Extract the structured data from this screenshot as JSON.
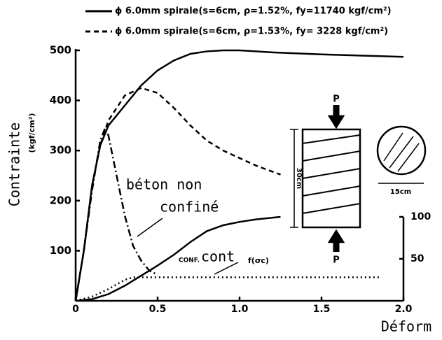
{
  "chart_data": {
    "type": "line",
    "legend": [
      "ϕ 6.0mm spirale(s=6cm, ρ=1.52%, fy=11740 kgf/cm²)",
      "ϕ 6.0mm spirale(s=6cm, ρ=1.53%, fy= 3228 kgf/cm²)"
    ],
    "ylabel": [
      "Contrainte",
      "(kgf/cm²)"
    ],
    "xlabel": "Déform",
    "xlim": [
      0,
      2
    ],
    "xticks": [
      0,
      0.5,
      {
        "value": 1,
        "label": "1.0"
      },
      1.5,
      {
        "value": 2,
        "label": "2.0"
      }
    ],
    "ylim": [
      0,
      500
    ],
    "yticks": [
      100,
      200,
      300,
      400,
      500
    ],
    "y2lim": [
      0,
      100
    ],
    "y2ticks": [
      50,
      100
    ],
    "series": [
      {
        "name": "ϕ 6.0mm spirale(s=6cm, ρ=1.52%, fy=11740 kgf/cm²)",
        "color": "#000000",
        "dash": "solid",
        "x": [
          0,
          0.05,
          0.1,
          0.15,
          0.2,
          0.3,
          0.4,
          0.5,
          0.6,
          0.7,
          0.8,
          0.9,
          1.0,
          1.1,
          1.2,
          1.5,
          2.0
        ],
        "values": [
          0,
          100,
          230,
          310,
          350,
          390,
          430,
          460,
          480,
          493,
          498,
          500,
          500,
          498,
          496,
          492,
          487
        ]
      },
      {
        "name": "ϕ 6.0mm spirale(s=6cm, ρ=1.53%, fy= 3228 kgf/cm²)",
        "color": "#000000",
        "dash": "dashed",
        "x": [
          0,
          0.05,
          0.1,
          0.15,
          0.2,
          0.3,
          0.4,
          0.5,
          0.6,
          0.7,
          0.8,
          0.9,
          1.0,
          1.1,
          1.2,
          1.25
        ],
        "values": [
          0,
          100,
          230,
          310,
          360,
          410,
          425,
          415,
          385,
          350,
          320,
          300,
          285,
          270,
          258,
          252
        ]
      },
      {
        "color": "#000000",
        "dash": "dashdot",
        "x": [
          0,
          0.05,
          0.1,
          0.15,
          0.18,
          0.2,
          0.25,
          0.3,
          0.35,
          0.4,
          0.45,
          0.5
        ],
        "values": [
          0,
          100,
          220,
          320,
          345,
          330,
          250,
          170,
          110,
          80,
          60,
          52
        ]
      },
      {
        "color": "#000000",
        "dash": "solid",
        "axis": "y2",
        "x": [
          0,
          0.1,
          0.2,
          0.3,
          0.4,
          0.5,
          0.6,
          0.7,
          0.8,
          0.9,
          1.0,
          1.1,
          1.25
        ],
        "values": [
          0,
          2,
          8,
          18,
          30,
          42,
          55,
          70,
          83,
          90,
          94,
          97,
          100
        ]
      },
      {
        "color": "#000000",
        "dash": "dotted",
        "axis": "y2",
        "x": [
          0,
          0.1,
          0.2,
          0.3,
          0.35,
          1.85
        ],
        "values": [
          0,
          5,
          14,
          25,
          28,
          28
        ]
      }
    ],
    "annotations": [
      "béton non",
      "confiné",
      "CONF.",
      "cont",
      "f(σc)",
      "P",
      "P",
      "30cm",
      "15cm"
    ]
  }
}
